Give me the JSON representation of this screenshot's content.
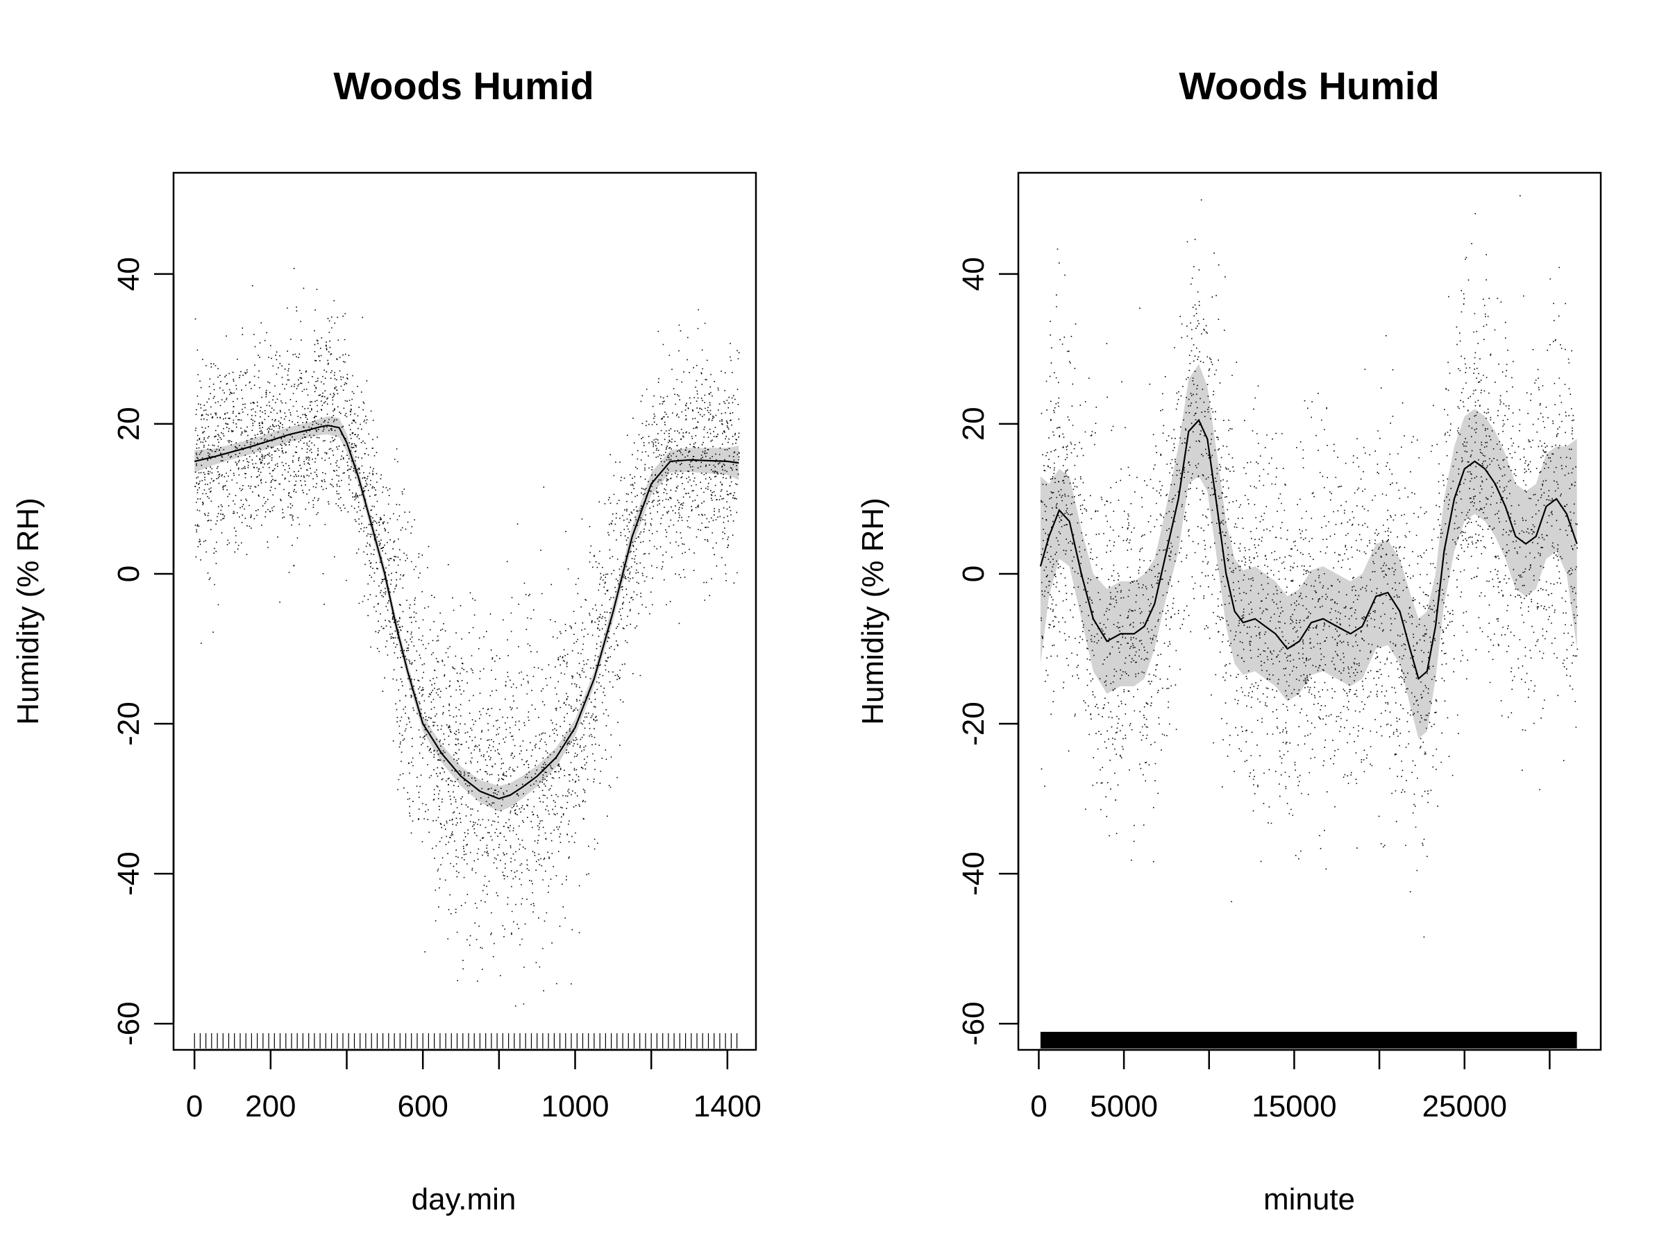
{
  "chart_data": [
    {
      "type": "line",
      "title": "Woods Humid",
      "xlabel": "day.min",
      "ylabel": "Humidity (% RH)",
      "xlim": [
        -55,
        1475
      ],
      "ylim": [
        -63.5,
        53.5
      ],
      "x_ticks": [
        0,
        200,
        400,
        600,
        800,
        1000,
        1200,
        1400
      ],
      "x_tick_labels": [
        "0",
        "200",
        "",
        "600",
        "",
        "1000",
        "",
        "1400"
      ],
      "y_ticks": [
        -60,
        -40,
        -20,
        0,
        20,
        40
      ],
      "y_tick_labels": [
        "-60",
        "-40",
        "-20",
        "0",
        "20",
        "40"
      ],
      "series": [
        {
          "x": [
            0,
            50,
            100,
            150,
            200,
            250,
            300,
            330,
            350,
            380,
            400,
            430,
            460,
            500,
            530,
            560,
            600,
            650,
            700,
            750,
            800,
            830,
            860,
            900,
            950,
            1000,
            1050,
            1100,
            1150,
            1200,
            1250,
            1300,
            1350,
            1400,
            1430
          ],
          "y": [
            15,
            15.6,
            16.3,
            17,
            17.8,
            18.6,
            19.2,
            19.6,
            19.8,
            19.5,
            17.5,
            13,
            7.5,
            0,
            -7,
            -13,
            -20,
            -24,
            -27,
            -29,
            -30,
            -29.5,
            -28.5,
            -27,
            -24.5,
            -20.5,
            -14,
            -5,
            5,
            12,
            15,
            15.2,
            15.1,
            15,
            14.8
          ]
        }
      ],
      "confidence_band": {
        "lower": [
          13.5,
          14.5,
          15.3,
          16,
          16.8,
          17.6,
          18.2,
          18.5,
          18.6,
          18.2,
          16.3,
          12,
          6.5,
          -1,
          -8,
          -14,
          -21,
          -25.2,
          -28.3,
          -30.5,
          -31.7,
          -31.1,
          -30,
          -28.4,
          -25.8,
          -21.6,
          -15,
          -6.2,
          3.7,
          10.5,
          13.5,
          13.6,
          13.4,
          13.2,
          12.5
        ],
        "upper": [
          16.5,
          16.7,
          17.3,
          18,
          18.8,
          19.6,
          20.2,
          20.7,
          21,
          20.8,
          18.7,
          14,
          8.5,
          1,
          -6,
          -12,
          -19,
          -22.8,
          -25.7,
          -27.5,
          -28.3,
          -27.9,
          -27,
          -25.6,
          -23.2,
          -19.4,
          -13,
          -3.8,
          6.3,
          13.5,
          16.5,
          16.8,
          16.8,
          16.8,
          17.1
        ]
      }
    },
    {
      "type": "line",
      "title": "Woods Humid",
      "xlabel": "minute",
      "ylabel": "Humidity (% RH)",
      "xlim": [
        -1200,
        33000
      ],
      "ylim": [
        -63.5,
        53.5
      ],
      "x_ticks": [
        0,
        5000,
        10000,
        15000,
        20000,
        25000,
        30000
      ],
      "x_tick_labels": [
        "0",
        "5000",
        "",
        "15000",
        "",
        "25000",
        ""
      ],
      "y_ticks": [
        -60,
        -40,
        -20,
        0,
        20,
        40
      ],
      "y_tick_labels": [
        "-60",
        "-40",
        "-20",
        "0",
        "20",
        "40"
      ],
      "series": [
        {
          "x": [
            100,
            600,
            1200,
            1800,
            2500,
            3200,
            4000,
            4800,
            5600,
            6200,
            6800,
            7400,
            8200,
            8800,
            9400,
            9900,
            10400,
            11000,
            11500,
            12000,
            12700,
            13300,
            13900,
            14600,
            15300,
            16000,
            16700,
            17500,
            18300,
            19000,
            19800,
            20500,
            21200,
            21800,
            22300,
            22800,
            23300,
            23800,
            24400,
            25000,
            25600,
            26200,
            26800,
            27400,
            28000,
            28600,
            29200,
            29800,
            30400,
            31000,
            31600
          ],
          "y": [
            1,
            5,
            8.5,
            7,
            0,
            -6,
            -9,
            -8,
            -8,
            -7,
            -4,
            2,
            10,
            19,
            20.5,
            18,
            10,
            0,
            -5,
            -6.5,
            -6,
            -7,
            -8,
            -10,
            -9,
            -6.5,
            -6,
            -7,
            -8,
            -7,
            -3,
            -2.5,
            -5,
            -10,
            -14,
            -13,
            -7,
            3,
            10,
            14,
            15,
            14,
            12,
            9,
            5,
            4,
            5,
            9,
            10,
            8,
            4
          ]
        }
      ],
      "confidence_band": {
        "lower": [
          -12,
          -3,
          2,
          1,
          -6,
          -13,
          -16,
          -15,
          -15,
          -14,
          -10,
          -4,
          3,
          12,
          13,
          11,
          3,
          -7,
          -12,
          -13.5,
          -13,
          -14,
          -15,
          -17,
          -16,
          -13.5,
          -13,
          -14,
          -15,
          -14,
          -10,
          -9.5,
          -12,
          -17.5,
          -22,
          -21,
          -14,
          -4,
          3,
          7,
          8,
          7,
          5,
          2,
          -2,
          -3,
          -2,
          2,
          3,
          0,
          -10
        ],
        "upper": [
          13,
          12,
          14,
          13,
          6,
          0,
          -2,
          -1,
          -1,
          0,
          2,
          8,
          17,
          26,
          28,
          25,
          17,
          7,
          2,
          0.5,
          1,
          0,
          -1,
          -3,
          -2,
          0.5,
          1,
          0,
          -1,
          0,
          4,
          4.5,
          2,
          -2.5,
          -6,
          -5,
          0,
          10,
          17,
          21,
          22,
          21,
          19,
          16,
          12,
          11,
          12,
          16,
          17,
          17,
          18
        ]
      }
    }
  ]
}
